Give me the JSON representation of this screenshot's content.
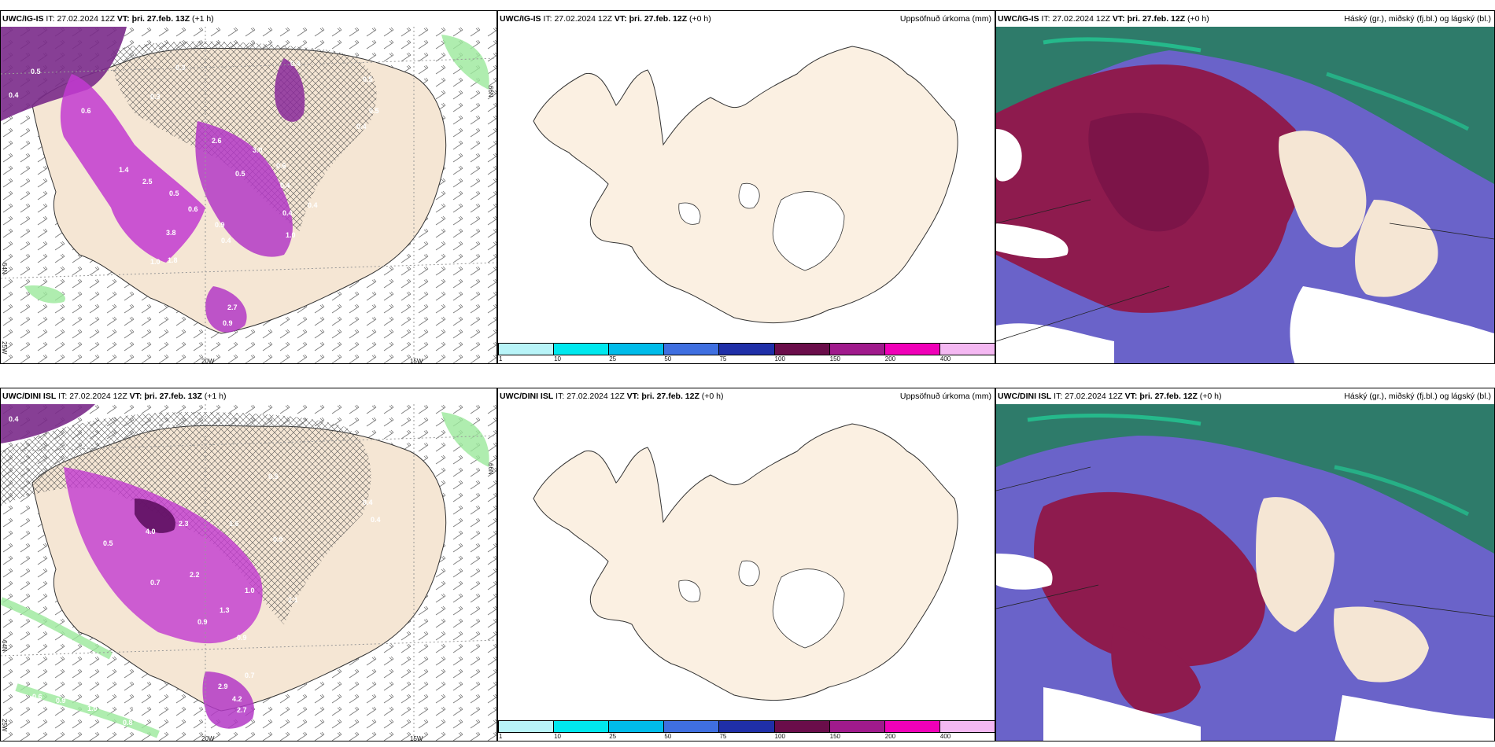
{
  "rows": [
    {
      "panels": [
        {
          "model": "UWC/IG-IS",
          "it_label": "IT:",
          "it": "27.02.2024 12Z",
          "vt_label": "VT:",
          "vt": "þri. 27.feb. 13Z",
          "lead": "(+1 h)",
          "right_title": ""
        },
        {
          "model": "UWC/IG-IS",
          "it_label": "IT:",
          "it": "27.02.2024 12Z",
          "vt_label": "VT:",
          "vt": "þri. 27.feb. 12Z",
          "lead": "(+0 h)",
          "right_title": "Uppsöfnuð úrkoma (mm)"
        },
        {
          "model": "UWC/IG-IS",
          "it_label": "IT:",
          "it": "27.02.2024 12Z",
          "vt_label": "VT:",
          "vt": "þri. 27.feb. 12Z",
          "lead": "(+0 h)",
          "right_title": "Háský (gr.), miðský (fj.bl.) og lágský (bl.)"
        }
      ],
      "map_values": [
        "0.4",
        "0.5",
        "0.3",
        "0.4",
        "0.3",
        "0.5",
        "0.6",
        "2.6",
        "3.0",
        "1.4",
        "3.8",
        "0.5",
        "0.4",
        "1.0",
        "0.6",
        "2.5",
        "0.5",
        "0.9",
        "1.8",
        "0.6",
        "0.4",
        "1.0",
        "0.4",
        "0.4",
        "0.4",
        "0.5",
        "2.7",
        "0.9"
      ]
    },
    {
      "panels": [
        {
          "model": "UWC/DINI ISL",
          "it_label": "IT:",
          "it": "27.02.2024 12Z",
          "vt_label": "VT:",
          "vt": "þri. 27.feb. 13Z",
          "lead": "(+1 h)",
          "right_title": ""
        },
        {
          "model": "UWC/DINI ISL",
          "it_label": "IT:",
          "it": "27.02.2024 12Z",
          "vt_label": "VT:",
          "vt": "þri. 27.feb. 12Z",
          "lead": "(+0 h)",
          "right_title": "Uppsöfnuð úrkoma (mm)"
        },
        {
          "model": "UWC/DINI ISL",
          "it_label": "IT:",
          "it": "27.02.2024 12Z",
          "vt_label": "VT:",
          "vt": "þri. 27.feb. 12Z",
          "lead": "(+0 h)",
          "right_title": "Háský (gr.), miðský (fj.bl.) og lágský (bl.)"
        }
      ],
      "map_values": [
        "0.4",
        "0.3",
        "0.4",
        "2.3",
        "4.0",
        "1.6",
        "0.9",
        "2.1",
        "1.0",
        "2.9",
        "4.2",
        "2.7",
        "0.7",
        "1.0",
        "1.5",
        "0.9",
        "0.6",
        "0.8",
        "0.7",
        "1.3",
        "2.2",
        "0.4",
        "0.5",
        "0.5",
        "0.9",
        "0.7",
        "0.9"
      ]
    }
  ],
  "axes": {
    "lon_20w": "20W",
    "lon_15w": "15W",
    "lat_66n": "66N",
    "lat_64n": "64N",
    "lon_25w": "25W"
  },
  "colorbar": {
    "ticks": [
      "1",
      "10",
      "25",
      "50",
      "75",
      "100",
      "150",
      "200",
      "400"
    ],
    "colors": [
      "#b8f4f8",
      "#00e8ee",
      "#00bcea",
      "#3f6fe0",
      "#1f2fa8",
      "#6a0d4a",
      "#a01a8c",
      "#f000b8",
      "#f4b8f2"
    ]
  }
}
